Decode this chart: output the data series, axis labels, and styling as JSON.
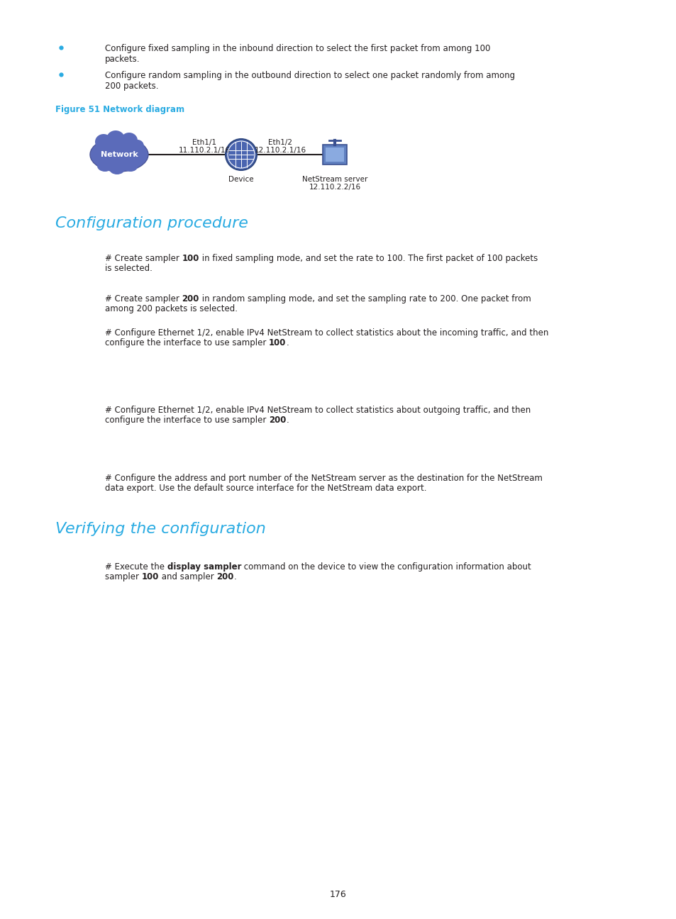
{
  "bg_color": "#ffffff",
  "page_number": "176",
  "cyan_color": "#29abe2",
  "black_color": "#231f20",
  "bullet_color": "#29abe2",
  "figure_label": "Figure 51 Network diagram",
  "network_diagram": {
    "network_label": "Network",
    "eth1_1_label": "Eth1/1",
    "eth1_1_ip": "11.110.2.1/16",
    "eth1_2_label": "Eth1/2",
    "eth1_2_ip": "12.110.2.1/16",
    "device_label": "Device",
    "server_label": "NetStream server",
    "server_ip": "12.110.2.2/16"
  },
  "section1_title": "Configuration procedure",
  "section2_title": "Verifying the configuration",
  "page_num": "176"
}
